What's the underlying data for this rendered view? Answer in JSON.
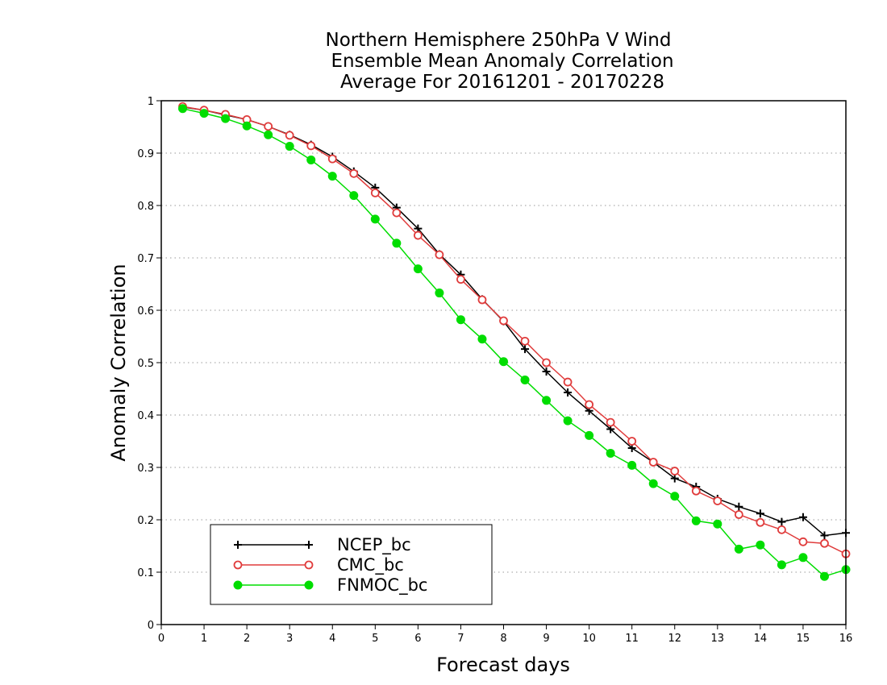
{
  "chart_data": {
    "type": "line",
    "title": [
      "Northern Hemisphere 250hPa V Wind",
      "Ensemble Mean Anomaly Correlation",
      "Average For 20161201 - 20170228"
    ],
    "xlabel": "Forecast days",
    "ylabel": "Anomaly Correlation",
    "xlim": [
      0,
      16
    ],
    "ylim": [
      0,
      1
    ],
    "xticks": [
      "0",
      "1",
      "2",
      "3",
      "4",
      "5",
      "6",
      "7",
      "8",
      "9",
      "10",
      "11",
      "12",
      "13",
      "14",
      "15",
      "16"
    ],
    "yticks": [
      "0",
      "0.1",
      "0.2",
      "0.3",
      "0.4",
      "0.5",
      "0.6",
      "0.7",
      "0.8",
      "0.9",
      "1"
    ],
    "grid": "horizontal-dotted",
    "legend_position": "bottom-left",
    "x": [
      0.5,
      1,
      1.5,
      2,
      2.5,
      3,
      3.5,
      4,
      4.5,
      5,
      5.5,
      6,
      6.5,
      7,
      7.5,
      8,
      8.5,
      9,
      9.5,
      10,
      10.5,
      11,
      11.5,
      12,
      12.5,
      13,
      13.5,
      14,
      14.5,
      15,
      15.5,
      16
    ],
    "series": [
      {
        "name": "NCEP_bc",
        "color": "#000000",
        "marker": "plus",
        "values": [
          0.988,
          0.982,
          0.973,
          0.964,
          0.951,
          0.935,
          0.916,
          0.893,
          0.865,
          0.834,
          0.796,
          0.756,
          0.707,
          0.668,
          0.621,
          0.579,
          0.526,
          0.483,
          0.443,
          0.408,
          0.373,
          0.337,
          0.31,
          0.279,
          0.263,
          0.24,
          0.225,
          0.212,
          0.196,
          0.205,
          0.17,
          0.175
        ]
      },
      {
        "name": "CMC_bc",
        "color": "#e03c3c",
        "marker": "open-circle",
        "values": [
          0.989,
          0.982,
          0.974,
          0.964,
          0.951,
          0.934,
          0.914,
          0.889,
          0.861,
          0.824,
          0.786,
          0.743,
          0.706,
          0.659,
          0.62,
          0.58,
          0.541,
          0.5,
          0.463,
          0.42,
          0.386,
          0.35,
          0.31,
          0.293,
          0.255,
          0.236,
          0.21,
          0.195,
          0.181,
          0.158,
          0.155,
          0.135
        ]
      },
      {
        "name": "FNMOC_bc",
        "color": "#00dd00",
        "marker": "filled-circle",
        "values": [
          0.985,
          0.976,
          0.966,
          0.952,
          0.935,
          0.913,
          0.887,
          0.856,
          0.819,
          0.774,
          0.728,
          0.679,
          0.633,
          0.582,
          0.545,
          0.502,
          0.467,
          0.428,
          0.389,
          0.361,
          0.327,
          0.304,
          0.269,
          0.245,
          0.198,
          0.192,
          0.144,
          0.152,
          0.114,
          0.128,
          0.092,
          0.105
        ]
      }
    ]
  }
}
